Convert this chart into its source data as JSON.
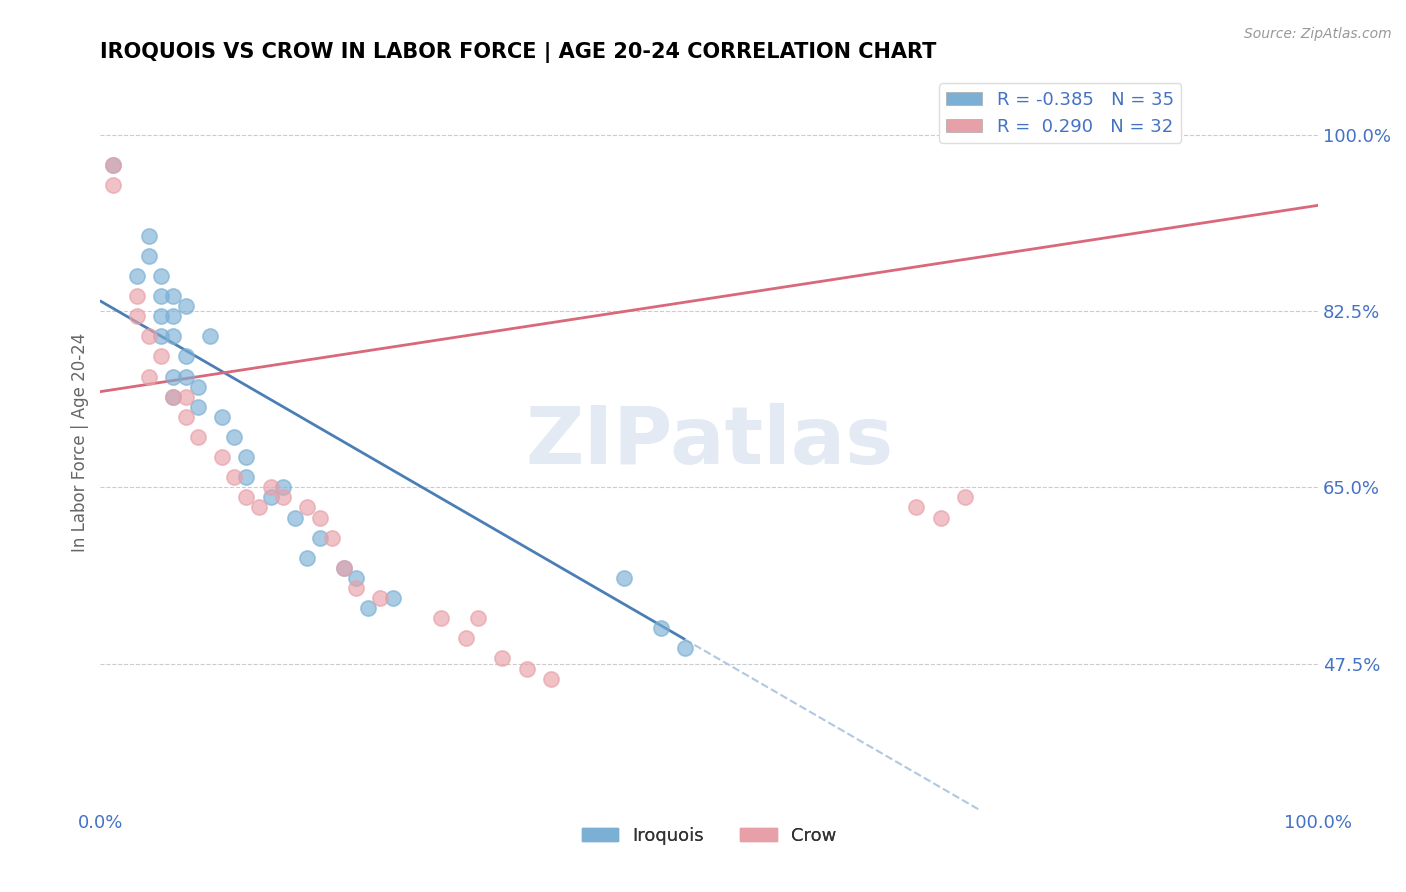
{
  "title": "IROQUOIS VS CROW IN LABOR FORCE | AGE 20-24 CORRELATION CHART",
  "source": "Source: ZipAtlas.com",
  "ylabel": "In Labor Force | Age 20-24",
  "xlim": [
    0.0,
    1.0
  ],
  "ylim": [
    0.33,
    1.06
  ],
  "yticks": [
    0.475,
    0.65,
    0.825,
    1.0
  ],
  "ytick_labels": [
    "47.5%",
    "65.0%",
    "82.5%",
    "100.0%"
  ],
  "xtick_labels": [
    "0.0%",
    "100.0%"
  ],
  "xticks": [
    0.0,
    1.0
  ],
  "iroquois_color": "#7bafd4",
  "crow_color": "#e8a0a8",
  "trend_iroquois_color": "#4a7eb5",
  "trend_crow_color": "#d9687a",
  "R_iroquois": -0.385,
  "N_iroquois": 35,
  "R_crow": 0.29,
  "N_crow": 32,
  "iroquois_x": [
    0.01,
    0.03,
    0.04,
    0.04,
    0.05,
    0.05,
    0.05,
    0.05,
    0.06,
    0.06,
    0.06,
    0.06,
    0.06,
    0.07,
    0.07,
    0.07,
    0.08,
    0.08,
    0.09,
    0.1,
    0.11,
    0.12,
    0.12,
    0.14,
    0.15,
    0.16,
    0.17,
    0.18,
    0.2,
    0.21,
    0.22,
    0.24,
    0.43,
    0.46,
    0.48
  ],
  "iroquois_y": [
    0.97,
    0.86,
    0.88,
    0.9,
    0.84,
    0.82,
    0.86,
    0.8,
    0.84,
    0.82,
    0.8,
    0.76,
    0.74,
    0.83,
    0.78,
    0.76,
    0.75,
    0.73,
    0.8,
    0.72,
    0.7,
    0.68,
    0.66,
    0.64,
    0.65,
    0.62,
    0.58,
    0.6,
    0.57,
    0.56,
    0.53,
    0.54,
    0.56,
    0.51,
    0.49
  ],
  "crow_x": [
    0.01,
    0.01,
    0.03,
    0.03,
    0.04,
    0.04,
    0.05,
    0.06,
    0.07,
    0.07,
    0.08,
    0.1,
    0.11,
    0.12,
    0.13,
    0.14,
    0.15,
    0.17,
    0.18,
    0.19,
    0.2,
    0.21,
    0.23,
    0.28,
    0.3,
    0.31,
    0.33,
    0.35,
    0.37,
    0.67,
    0.69,
    0.71
  ],
  "crow_y": [
    0.97,
    0.95,
    0.84,
    0.82,
    0.8,
    0.76,
    0.78,
    0.74,
    0.72,
    0.74,
    0.7,
    0.68,
    0.66,
    0.64,
    0.63,
    0.65,
    0.64,
    0.63,
    0.62,
    0.6,
    0.57,
    0.55,
    0.54,
    0.52,
    0.5,
    0.52,
    0.48,
    0.47,
    0.46,
    0.63,
    0.62,
    0.64
  ],
  "background_color": "#ffffff",
  "grid_color": "#cccccc",
  "axis_color": "#4472c4",
  "title_color": "#000000",
  "watermark_text": "ZIPatlas",
  "legend_iroquois_label": "Iroquois",
  "legend_crow_label": "Crow"
}
